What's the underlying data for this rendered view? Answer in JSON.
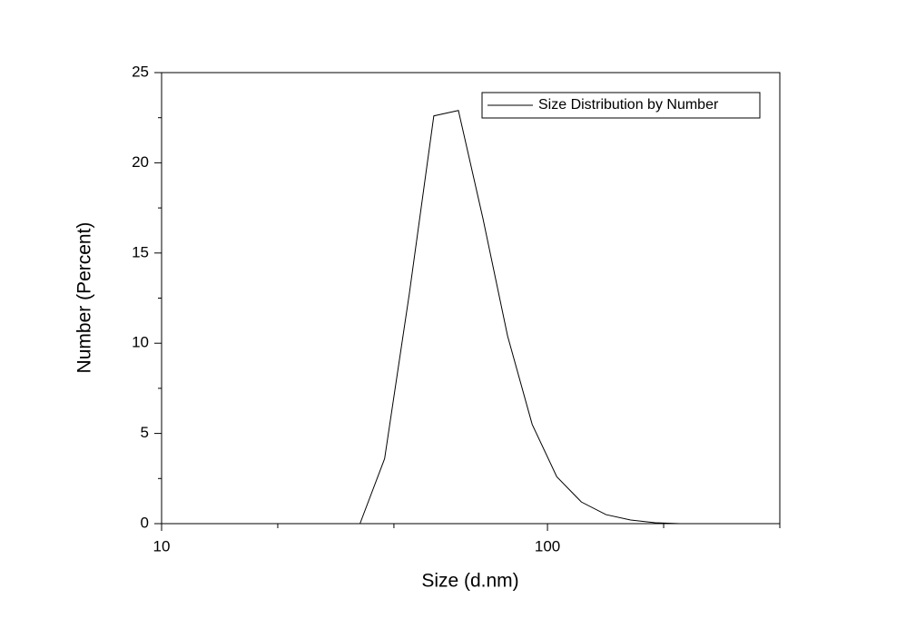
{
  "chart_data": {
    "type": "line",
    "xlabel": "Size (d.nm)",
    "ylabel": "Number (Percent)",
    "xscale": "log",
    "xlim": [
      10,
      400
    ],
    "xticks": [
      10,
      100
    ],
    "xminorticks": [
      20,
      40,
      200,
      400
    ],
    "ylim": [
      0,
      25
    ],
    "yticks": [
      0,
      5,
      10,
      15,
      20,
      25
    ],
    "yminorticks": [
      2.5,
      7.5,
      12.5,
      17.5,
      22.5
    ],
    "legend": "upper right",
    "series": [
      {
        "name": "Size Distribution by Number",
        "color": "#000000",
        "x": [
          32.67,
          37.84,
          43.82,
          50.75,
          58.77,
          68.06,
          78.82,
          91.28,
          105.7,
          122.4,
          141.8,
          164.2,
          190.1,
          220.2
        ],
        "values": [
          0,
          3.6,
          12.7,
          22.6,
          22.9,
          16.9,
          10.4,
          5.5,
          2.6,
          1.2,
          0.5,
          0.2,
          0.05,
          0
        ]
      }
    ]
  }
}
